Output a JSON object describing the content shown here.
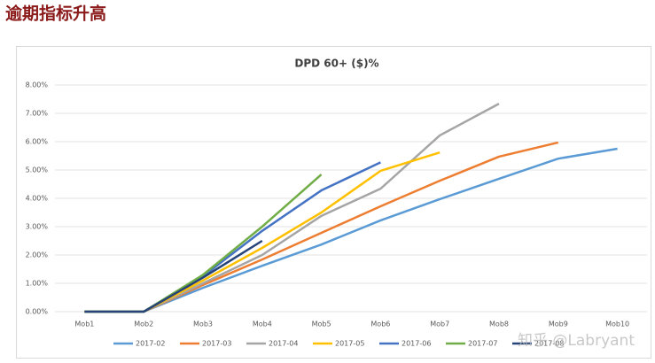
{
  "page_title": "逾期指标升高",
  "watermark": "知乎 @Labryant",
  "chart_data": {
    "type": "line",
    "title": "DPD  60+ ($)%",
    "categories": [
      "Mob1",
      "Mob2",
      "Mob3",
      "Mob4",
      "Mob5",
      "Mob6",
      "Mob7",
      "Mob8",
      "Mob9",
      "Mob10"
    ],
    "ylim": [
      0,
      8
    ],
    "yticks": [
      {
        "value": 0,
        "label": "0.00%"
      },
      {
        "value": 1,
        "label": "1.00%"
      },
      {
        "value": 2,
        "label": "2.00%"
      },
      {
        "value": 3,
        "label": "3.00%"
      },
      {
        "value": 4,
        "label": "4.00%"
      },
      {
        "value": 5,
        "label": "5.00%"
      },
      {
        "value": 6,
        "label": "6.00%"
      },
      {
        "value": 7,
        "label": "7.00%"
      },
      {
        "value": 8,
        "label": "8.00%"
      }
    ],
    "grid": true,
    "legend": "bottom",
    "series": [
      {
        "name": "2017-02",
        "color": "#5b9bd5",
        "values": [
          0,
          0,
          0.84,
          1.62,
          2.37,
          3.22,
          3.97,
          4.69,
          5.4,
          5.75
        ]
      },
      {
        "name": "2017-03",
        "color": "#ed7d31",
        "values": [
          0,
          0,
          0.94,
          1.84,
          2.78,
          3.72,
          4.62,
          5.47,
          5.97,
          null
        ]
      },
      {
        "name": "2017-04",
        "color": "#a5a5a5",
        "values": [
          0,
          0,
          1.0,
          2.0,
          3.38,
          4.34,
          6.22,
          7.34,
          null,
          null
        ]
      },
      {
        "name": "2017-05",
        "color": "#ffc000",
        "values": [
          0,
          0,
          1.1,
          2.25,
          3.5,
          4.97,
          5.62,
          null,
          null,
          null
        ]
      },
      {
        "name": "2017-06",
        "color": "#4472c4",
        "values": [
          0,
          0,
          1.25,
          2.85,
          4.28,
          5.27,
          null,
          null,
          null,
          null
        ]
      },
      {
        "name": "2017-07",
        "color": "#70ad47",
        "values": [
          0,
          0,
          1.3,
          3.0,
          4.84,
          null,
          null,
          null,
          null,
          null
        ]
      },
      {
        "name": "2017-08",
        "color": "#264478",
        "values": [
          0,
          0,
          1.2,
          2.5,
          null,
          null,
          null,
          null,
          null,
          null
        ]
      }
    ]
  }
}
